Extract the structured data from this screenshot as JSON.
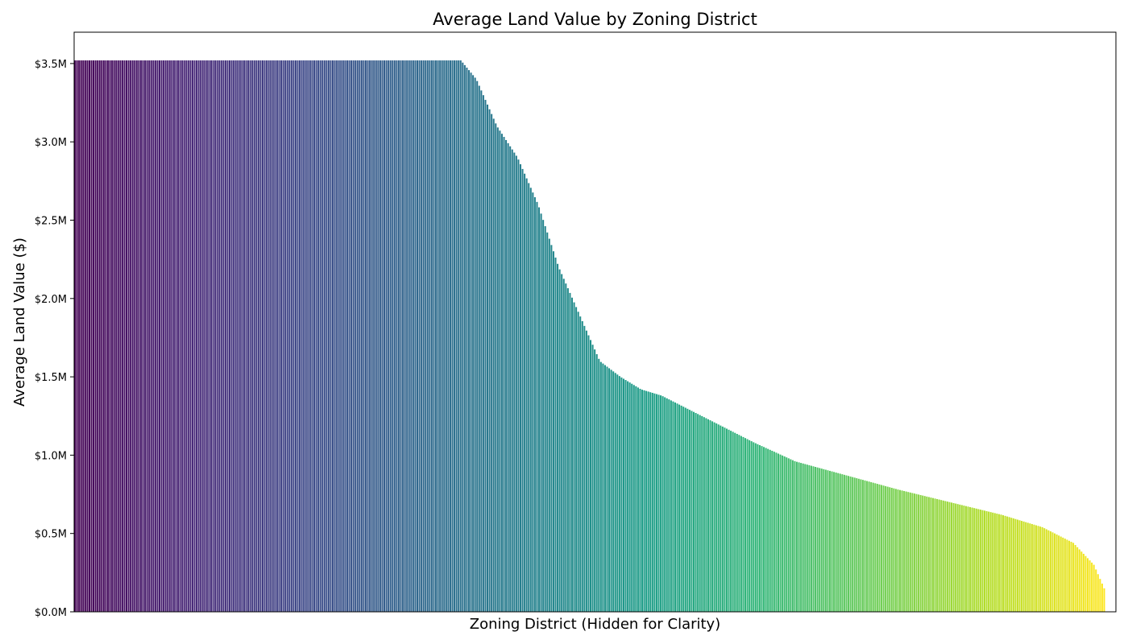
{
  "chart_data": {
    "type": "bar",
    "title": "Average Land Value by Zoning District",
    "xlabel": "Zoning District (Hidden for Clarity)",
    "ylabel": "Average Land Value ($)",
    "ylim": [
      0,
      3.7
    ],
    "y_unit": "$M",
    "y_ticks": [
      0,
      0.5,
      1.0,
      1.5,
      2.0,
      2.5,
      3.0,
      3.5
    ],
    "y_tick_labels": [
      "$0.0M",
      "$0.5M",
      "$1.0M",
      "$1.5M",
      "$2.0M",
      "$2.5M",
      "$3.0M",
      "$3.5M"
    ],
    "x_tick_labels_hidden": true,
    "grid": false,
    "bar_count": 500,
    "colormap": "viridis",
    "colormap_stops": [
      "#440154",
      "#482878",
      "#3e4989",
      "#31688e",
      "#26828e",
      "#1f9e89",
      "#35b779",
      "#6ece58",
      "#b5de2b",
      "#fde725"
    ],
    "value_profile": [
      {
        "rank_fraction": 0.0,
        "value": 3.52
      },
      {
        "rank_fraction": 0.375,
        "value": 3.52
      },
      {
        "rank_fraction": 0.39,
        "value": 3.4
      },
      {
        "rank_fraction": 0.41,
        "value": 3.1
      },
      {
        "rank_fraction": 0.43,
        "value": 2.9
      },
      {
        "rank_fraction": 0.45,
        "value": 2.6
      },
      {
        "rank_fraction": 0.47,
        "value": 2.2
      },
      {
        "rank_fraction": 0.49,
        "value": 1.9
      },
      {
        "rank_fraction": 0.51,
        "value": 1.6
      },
      {
        "rank_fraction": 0.53,
        "value": 1.5
      },
      {
        "rank_fraction": 0.55,
        "value": 1.42
      },
      {
        "rank_fraction": 0.57,
        "value": 1.38
      },
      {
        "rank_fraction": 0.6,
        "value": 1.28
      },
      {
        "rank_fraction": 0.63,
        "value": 1.18
      },
      {
        "rank_fraction": 0.66,
        "value": 1.08
      },
      {
        "rank_fraction": 0.7,
        "value": 0.96
      },
      {
        "rank_fraction": 0.75,
        "value": 0.87
      },
      {
        "rank_fraction": 0.8,
        "value": 0.78
      },
      {
        "rank_fraction": 0.85,
        "value": 0.7
      },
      {
        "rank_fraction": 0.9,
        "value": 0.62
      },
      {
        "rank_fraction": 0.94,
        "value": 0.54
      },
      {
        "rank_fraction": 0.97,
        "value": 0.44
      },
      {
        "rank_fraction": 0.99,
        "value": 0.3
      },
      {
        "rank_fraction": 1.0,
        "value": 0.15
      }
    ]
  }
}
